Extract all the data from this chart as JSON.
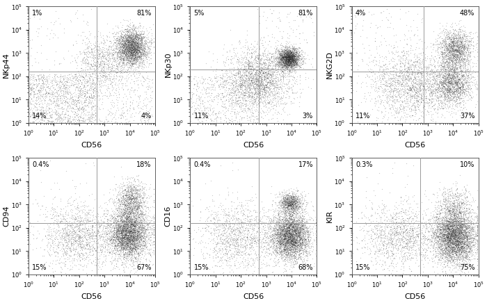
{
  "panels": [
    {
      "ylabel": "NKp44",
      "xlabel": "CD56",
      "quadrant_labels": [
        "1%",
        "81%",
        "14%",
        "4%"
      ],
      "gate_x": 500,
      "gate_y": 160
    },
    {
      "ylabel": "NKp30",
      "xlabel": "CD56",
      "quadrant_labels": [
        "5%",
        "81%",
        "11%",
        "3%"
      ],
      "gate_x": 500,
      "gate_y": 200
    },
    {
      "ylabel": "NKG2D",
      "xlabel": "CD56",
      "quadrant_labels": [
        "4%",
        "48%",
        "11%",
        "37%"
      ],
      "gate_x": 700,
      "gate_y": 160
    },
    {
      "ylabel": "CD94",
      "xlabel": "CD56",
      "quadrant_labels": [
        "0.4%",
        "18%",
        "15%",
        "67%"
      ],
      "gate_x": 500,
      "gate_y": 160
    },
    {
      "ylabel": "CD16",
      "xlabel": "CD56",
      "quadrant_labels": [
        "0.4%",
        "17%",
        "15%",
        "68%"
      ],
      "gate_x": 500,
      "gate_y": 160
    },
    {
      "ylabel": "KIR",
      "xlabel": "CD56",
      "quadrant_labels": [
        "0.3%",
        "10%",
        "15%",
        "75%"
      ],
      "gate_x": 500,
      "gate_y": 160
    }
  ],
  "xlim": [
    1.0,
    100000.0
  ],
  "ylim": [
    1.0,
    100000.0
  ],
  "dot_color": "#222222",
  "dot_alpha": 0.25,
  "dot_size": 0.8,
  "gate_color": "#999999",
  "bg_color": "#ffffff",
  "font_size": 7
}
